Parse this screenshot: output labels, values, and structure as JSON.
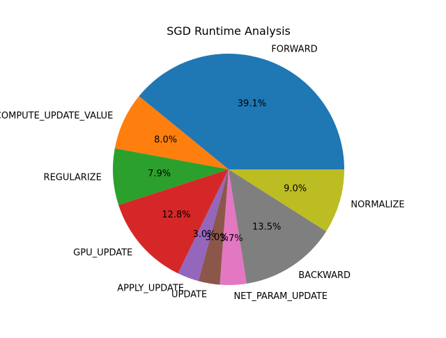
{
  "chart_data": {
    "type": "pie",
    "title": "SGD Runtime Analysis",
    "start_angle_deg": 0,
    "direction": "counterclockwise",
    "slices": [
      {
        "label": "FORWARD",
        "value": 39.1,
        "pct_label": "39.1%",
        "color": "#1f77b4"
      },
      {
        "label": "COMPUTE_UPDATE_VALUE",
        "value": 8.0,
        "pct_label": "8.0%",
        "color": "#ff7f0e"
      },
      {
        "label": "REGULARIZE",
        "value": 7.9,
        "pct_label": "7.9%",
        "color": "#2ca02c"
      },
      {
        "label": "GPU_UPDATE",
        "value": 12.8,
        "pct_label": "12.8%",
        "color": "#d62728"
      },
      {
        "label": "APPLY_UPDATE",
        "value": 3.0,
        "pct_label": "3.0%",
        "color": "#9467bd"
      },
      {
        "label": "UPDATE",
        "value": 3.0,
        "pct_label": "3.0%",
        "color": "#8c564b"
      },
      {
        "label": "NET_PARAM_UPDATE",
        "value": 3.7,
        "pct_label": "3.7%",
        "color": "#e377c2"
      },
      {
        "label": "BACKWARD",
        "value": 13.5,
        "pct_label": "13.5%",
        "color": "#7f7f7f"
      },
      {
        "label": "NORMALIZE",
        "value": 9.0,
        "pct_label": "9.0%",
        "color": "#bcbd22"
      }
    ]
  }
}
